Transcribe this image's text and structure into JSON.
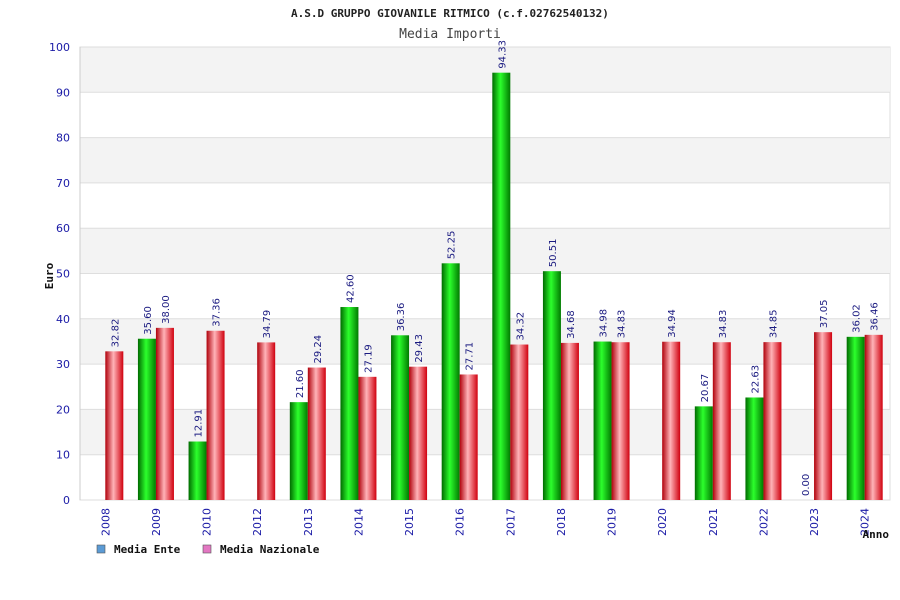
{
  "chart_data": {
    "type": "bar",
    "title": "A.S.D GRUPPO GIOVANILE RITMICO (c.f.02762540132)",
    "subtitle": "Media Importi",
    "xlabel": "Anno",
    "ylabel": "Euro",
    "ylim": [
      0,
      100
    ],
    "yticks": [
      0,
      10,
      20,
      30,
      40,
      50,
      60,
      70,
      80,
      90,
      100
    ],
    "grid": true,
    "legend_position": "bottom-left",
    "categories": [
      "2008",
      "2009",
      "2010",
      "2012",
      "2013",
      "2014",
      "2015",
      "2016",
      "2017",
      "2018",
      "2019",
      "2020",
      "2021",
      "2022",
      "2023",
      "2024"
    ],
    "series": [
      {
        "name": "Media Ente",
        "legend_color": "#5b9bd5",
        "bar_color": "#00b000",
        "values": [
          null,
          35.6,
          12.91,
          null,
          21.6,
          42.6,
          36.36,
          52.25,
          94.33,
          50.51,
          34.98,
          null,
          20.67,
          22.63,
          0.0,
          36.02
        ],
        "labels": [
          "",
          "35.60",
          "12.91",
          "",
          "21.60",
          "42.60",
          "36.36",
          "52.25",
          "94.33",
          "50.51",
          "34.98",
          "",
          "20.67",
          "22.63",
          "0.00",
          "36.02"
        ]
      },
      {
        "name": "Media Nazionale",
        "legend_color": "#e377c2",
        "bar_color": "#e8101c",
        "values": [
          32.82,
          38.0,
          37.36,
          34.79,
          29.24,
          27.19,
          29.43,
          27.71,
          34.32,
          34.68,
          34.83,
          34.94,
          34.83,
          34.85,
          37.05,
          36.46
        ],
        "labels": [
          "32.82",
          "38.00",
          "37.36",
          "34.79",
          "29.24",
          "27.19",
          "29.43",
          "27.71",
          "34.32",
          "34.68",
          "34.83",
          "34.94",
          "34.83",
          "34.85",
          "37.05",
          "36.46"
        ]
      }
    ]
  }
}
